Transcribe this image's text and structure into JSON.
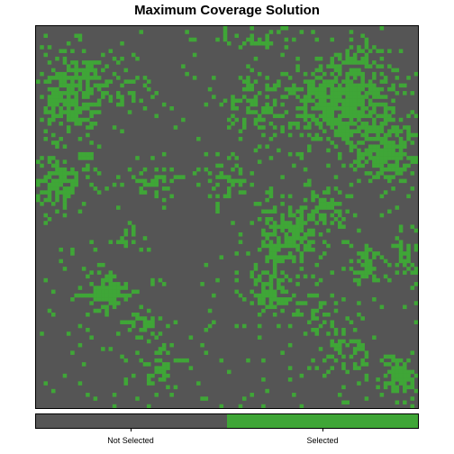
{
  "chart_data": {
    "type": "heatmap",
    "title": "Maximum Coverage Solution",
    "grid": false,
    "legend": {
      "placement": "bottom",
      "categories": [
        {
          "label": "Not Selected",
          "value": 0,
          "color": "#555555"
        },
        {
          "label": "Selected",
          "value": 1,
          "color": "#3fa637"
        }
      ]
    },
    "colors": {
      "not_selected": "#555555",
      "selected": "#3fa637",
      "frame": "#000000"
    },
    "grid_size": {
      "cols": 100,
      "rows": 100
    },
    "selected_regions": [
      {
        "cx": 0.08,
        "cy": 0.2,
        "rx": 0.07,
        "ry": 0.07,
        "density": 0.85
      },
      {
        "cx": 0.1,
        "cy": 0.12,
        "rx": 0.05,
        "ry": 0.04,
        "density": 0.55
      },
      {
        "cx": 0.2,
        "cy": 0.15,
        "rx": 0.07,
        "ry": 0.06,
        "density": 0.45
      },
      {
        "cx": 0.06,
        "cy": 0.42,
        "rx": 0.06,
        "ry": 0.05,
        "density": 0.8
      },
      {
        "cx": 0.13,
        "cy": 0.35,
        "rx": 0.03,
        "ry": 0.04,
        "density": 0.55
      },
      {
        "cx": 0.3,
        "cy": 0.41,
        "rx": 0.07,
        "ry": 0.03,
        "density": 0.7
      },
      {
        "cx": 0.24,
        "cy": 0.55,
        "rx": 0.03,
        "ry": 0.03,
        "density": 0.45
      },
      {
        "cx": 0.19,
        "cy": 0.7,
        "rx": 0.06,
        "ry": 0.04,
        "density": 0.85
      },
      {
        "cx": 0.27,
        "cy": 0.78,
        "rx": 0.04,
        "ry": 0.03,
        "density": 0.7
      },
      {
        "cx": 0.33,
        "cy": 0.89,
        "rx": 0.06,
        "ry": 0.05,
        "density": 0.5
      },
      {
        "cx": 0.48,
        "cy": 0.4,
        "rx": 0.06,
        "ry": 0.05,
        "density": 0.45
      },
      {
        "cx": 0.56,
        "cy": 0.21,
        "rx": 0.07,
        "ry": 0.06,
        "density": 0.5
      },
      {
        "cx": 0.58,
        "cy": 0.03,
        "rx": 0.1,
        "ry": 0.02,
        "density": 0.4
      },
      {
        "cx": 0.8,
        "cy": 0.2,
        "rx": 0.14,
        "ry": 0.1,
        "density": 0.95
      },
      {
        "cx": 0.92,
        "cy": 0.33,
        "rx": 0.08,
        "ry": 0.08,
        "density": 0.9
      },
      {
        "cx": 0.85,
        "cy": 0.08,
        "rx": 0.06,
        "ry": 0.04,
        "density": 0.55
      },
      {
        "cx": 0.66,
        "cy": 0.55,
        "rx": 0.08,
        "ry": 0.07,
        "density": 0.85
      },
      {
        "cx": 0.75,
        "cy": 0.48,
        "rx": 0.06,
        "ry": 0.05,
        "density": 0.6
      },
      {
        "cx": 0.86,
        "cy": 0.63,
        "rx": 0.05,
        "ry": 0.04,
        "density": 0.6
      },
      {
        "cx": 0.62,
        "cy": 0.7,
        "rx": 0.05,
        "ry": 0.05,
        "density": 0.85
      },
      {
        "cx": 0.72,
        "cy": 0.75,
        "rx": 0.05,
        "ry": 0.05,
        "density": 0.45
      },
      {
        "cx": 0.8,
        "cy": 0.85,
        "rx": 0.07,
        "ry": 0.06,
        "density": 0.45
      },
      {
        "cx": 0.95,
        "cy": 0.92,
        "rx": 0.05,
        "ry": 0.05,
        "density": 0.8
      },
      {
        "cx": 0.97,
        "cy": 0.6,
        "rx": 0.03,
        "ry": 0.1,
        "density": 0.55
      }
    ],
    "background_noise": 0.03,
    "seed": 20240517
  }
}
